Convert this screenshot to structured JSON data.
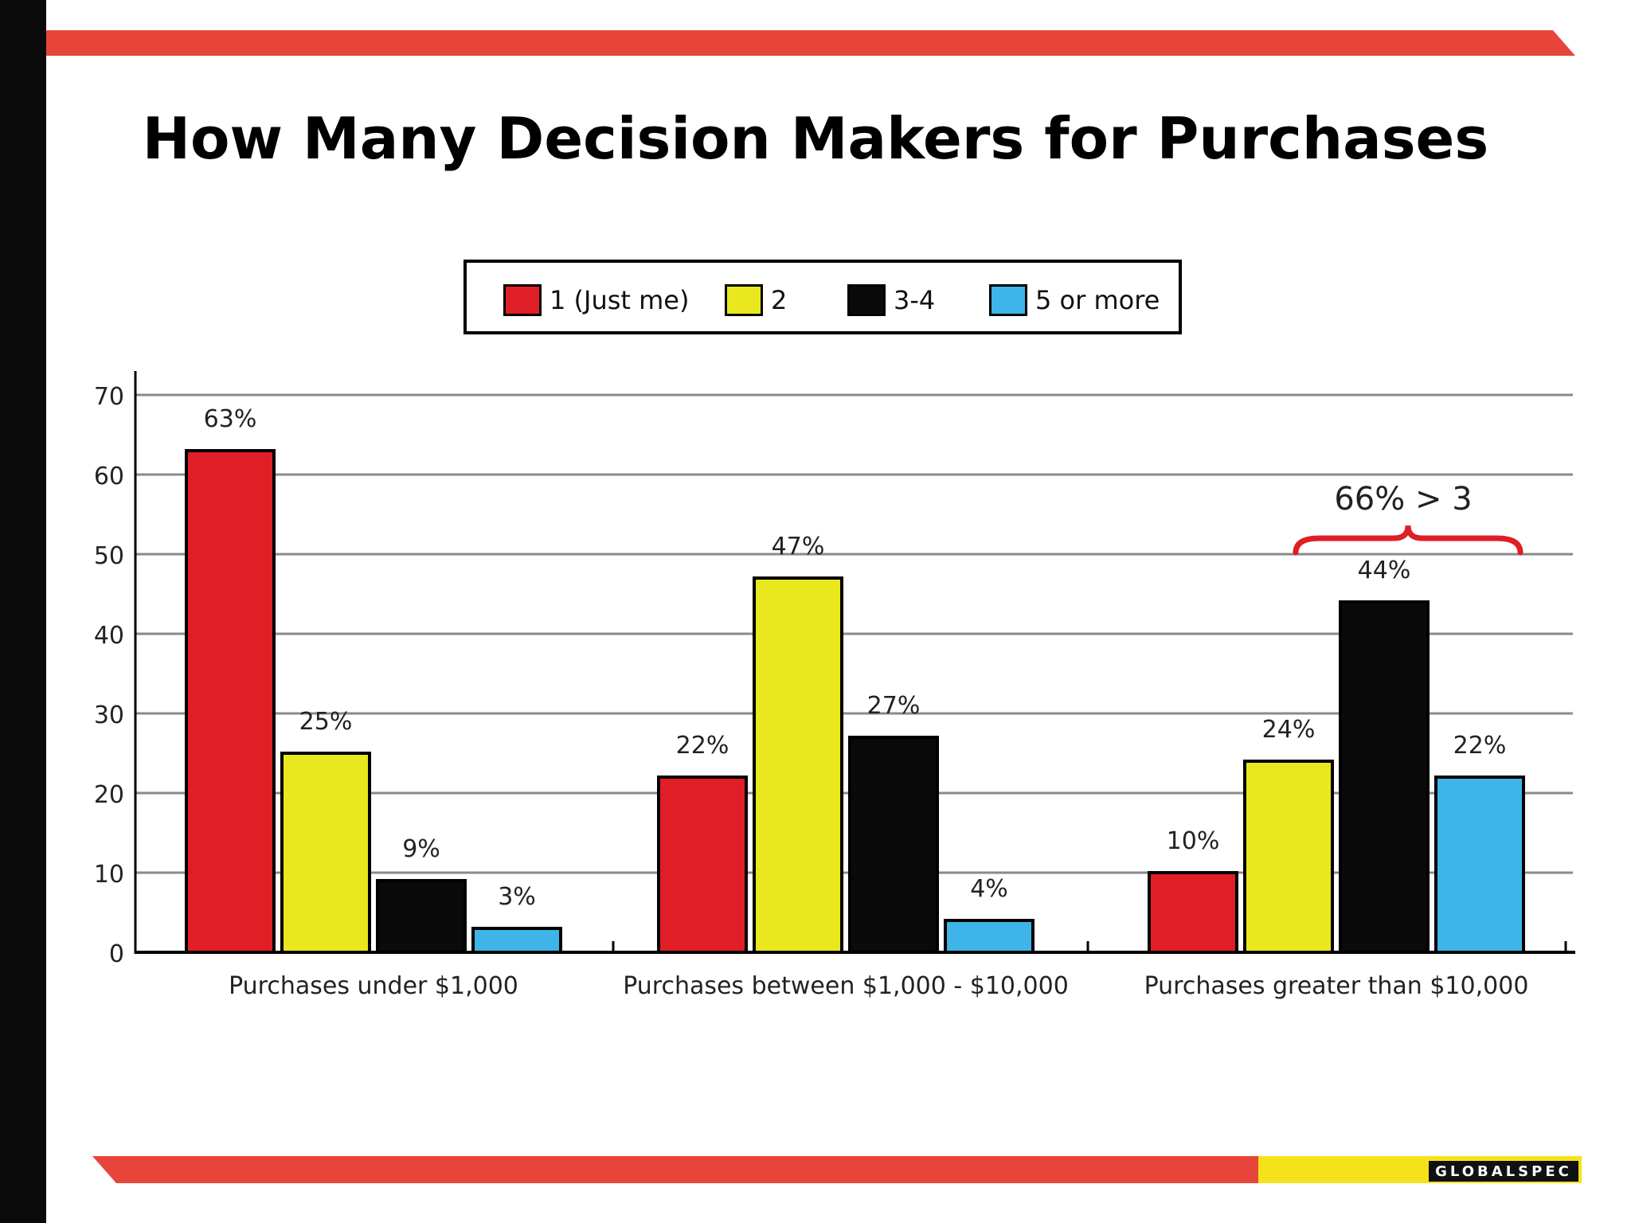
{
  "page": {
    "title": "How Many Decision Makers for Purchases",
    "logo_text": "GLOBALSPEC",
    "colors": {
      "stripe_red": "#e8453a",
      "stripe_yellow": "#f5e21a",
      "left_bar": "#0b0b0b"
    }
  },
  "chart_data": {
    "type": "bar",
    "title": "",
    "xlabel": "",
    "ylabel": "",
    "ylim": [
      0,
      70
    ],
    "yticks": [
      0,
      10,
      20,
      30,
      40,
      50,
      60,
      70
    ],
    "grid": true,
    "legend_position": "top",
    "categories": [
      "Purchases under $1,000",
      "Purchases between $1,000 - $10,000",
      "Purchases greater than $10,000"
    ],
    "series": [
      {
        "name": "1 (Just me)",
        "color": "#e01e26",
        "values": [
          63,
          22,
          10
        ],
        "labels": [
          "63%",
          "22%",
          "10%"
        ]
      },
      {
        "name": "2",
        "color": "#e9e81f",
        "values": [
          25,
          47,
          24
        ],
        "labels": [
          "25%",
          "47%",
          "24%"
        ]
      },
      {
        "name": "3-4",
        "color": "#0a0a0a",
        "values": [
          9,
          27,
          44
        ],
        "labels": [
          "9%",
          "27%",
          "44%"
        ]
      },
      {
        "name": "5 or more",
        "color": "#3fb4e8",
        "values": [
          3,
          4,
          22
        ],
        "labels": [
          "3%",
          "4%",
          "22%"
        ]
      }
    ],
    "annotation": {
      "text": "66% > 3",
      "color": "#e01e26"
    }
  }
}
